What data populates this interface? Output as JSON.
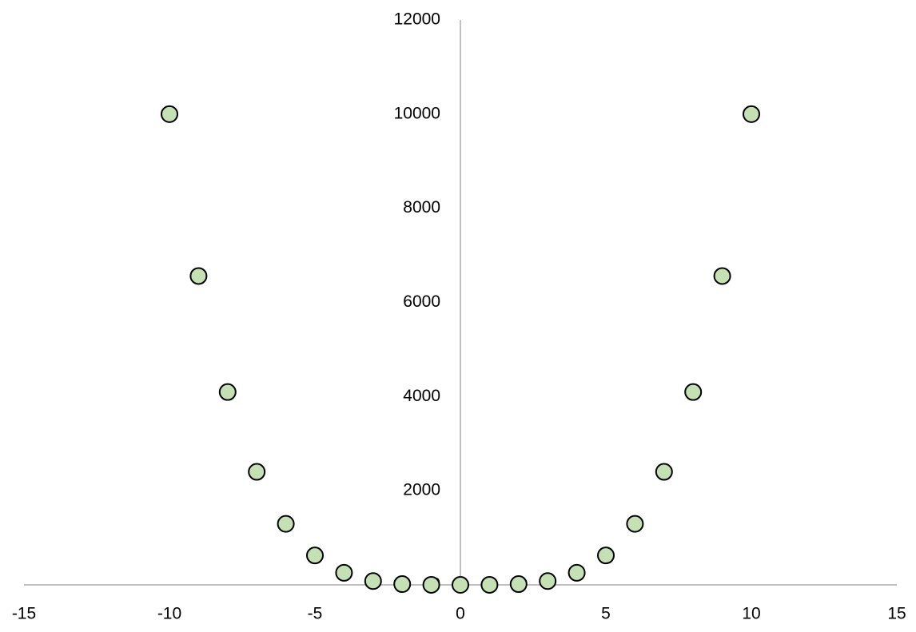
{
  "chart_data": {
    "type": "scatter",
    "x": [
      -10,
      -9,
      -8,
      -7,
      -6,
      -5,
      -4,
      -3,
      -2,
      -1,
      0,
      1,
      2,
      3,
      4,
      5,
      6,
      7,
      8,
      9,
      10
    ],
    "values": [
      10000,
      6561,
      4096,
      2401,
      1296,
      625,
      256,
      81,
      16,
      1,
      0,
      1,
      16,
      81,
      256,
      625,
      1296,
      2401,
      4096,
      6561,
      10000
    ],
    "color": "#c5e0b4",
    "xlim": [
      -15,
      15
    ],
    "xticks": [
      -15,
      -10,
      -5,
      0,
      5,
      10,
      15
    ],
    "ylim": [
      0,
      12000
    ],
    "yticks": [
      0,
      2000,
      4000,
      6000,
      8000,
      10000,
      12000
    ],
    "grid": false
  }
}
